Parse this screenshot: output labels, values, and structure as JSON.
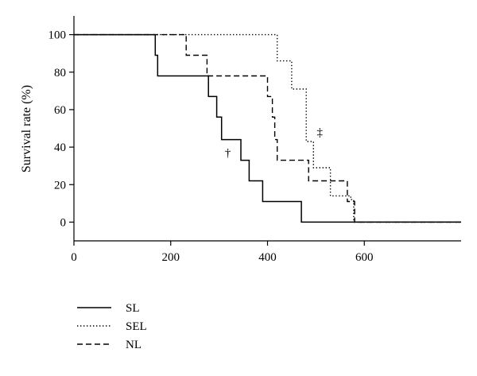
{
  "chart_data": {
    "type": "line",
    "title": "",
    "xlabel": "",
    "ylabel": "Survival rate (%)",
    "xlim": [
      0,
      800
    ],
    "ylim": [
      -10,
      110
    ],
    "x_ticks": [
      0,
      200,
      400,
      600
    ],
    "y_ticks": [
      0,
      20,
      40,
      60,
      80,
      100
    ],
    "grid": false,
    "legend_position": "bottom-left",
    "series": [
      {
        "name": "SL",
        "style": "solid",
        "color": "#000000",
        "points": [
          [
            0,
            100
          ],
          [
            168,
            100
          ],
          [
            168,
            89
          ],
          [
            173,
            89
          ],
          [
            173,
            78
          ],
          [
            278,
            78
          ],
          [
            278,
            67
          ],
          [
            295,
            67
          ],
          [
            295,
            56
          ],
          [
            305,
            56
          ],
          [
            305,
            44
          ],
          [
            345,
            44
          ],
          [
            345,
            33
          ],
          [
            362,
            33
          ],
          [
            362,
            22
          ],
          [
            390,
            22
          ],
          [
            390,
            11
          ],
          [
            470,
            11
          ],
          [
            470,
            0
          ],
          [
            800,
            0
          ]
        ]
      },
      {
        "name": "SEL",
        "style": "dotted",
        "color": "#000000",
        "points": [
          [
            0,
            100
          ],
          [
            420,
            100
          ],
          [
            420,
            86
          ],
          [
            450,
            86
          ],
          [
            450,
            71
          ],
          [
            480,
            71
          ],
          [
            480,
            43
          ],
          [
            495,
            43
          ],
          [
            495,
            29
          ],
          [
            530,
            29
          ],
          [
            530,
            14
          ],
          [
            572,
            14
          ],
          [
            572,
            12
          ],
          [
            578,
            12
          ],
          [
            578,
            0
          ],
          [
            800,
            0
          ]
        ]
      },
      {
        "name": "NL",
        "style": "dashed",
        "color": "#000000",
        "points": [
          [
            0,
            100
          ],
          [
            232,
            100
          ],
          [
            232,
            89
          ],
          [
            275,
            89
          ],
          [
            275,
            78
          ],
          [
            400,
            78
          ],
          [
            400,
            67
          ],
          [
            410,
            67
          ],
          [
            410,
            56
          ],
          [
            415,
            56
          ],
          [
            415,
            44
          ],
          [
            420,
            44
          ],
          [
            420,
            33
          ],
          [
            485,
            33
          ],
          [
            485,
            22
          ],
          [
            565,
            22
          ],
          [
            565,
            11
          ],
          [
            580,
            11
          ],
          [
            580,
            0
          ],
          [
            800,
            0
          ]
        ]
      }
    ],
    "annotations": [
      {
        "text": "†",
        "x": 318,
        "y": 35
      },
      {
        "text": "‡",
        "x": 508,
        "y": 46
      }
    ]
  }
}
